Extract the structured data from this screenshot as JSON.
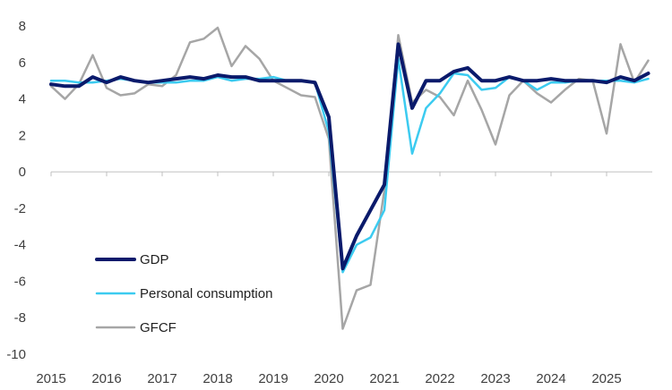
{
  "chart_data": {
    "type": "line",
    "title": "",
    "xlabel": "",
    "ylabel": "",
    "ylim": [
      -10,
      8
    ],
    "yticks": [
      -10,
      -8,
      -6,
      -4,
      -2,
      0,
      2,
      4,
      6,
      8
    ],
    "xlim": [
      2015,
      2025.875
    ],
    "xticks": [
      "2015",
      "2016",
      "2017",
      "2018",
      "2019",
      "2020",
      "2021",
      "2022",
      "2023",
      "2024",
      "2025"
    ],
    "grid": false,
    "legend_position": "bottom-left",
    "x": [
      2015,
      2015.25,
      2015.5,
      2015.75,
      2016,
      2016.25,
      2016.5,
      2016.75,
      2017,
      2017.25,
      2017.5,
      2017.75,
      2018,
      2018.25,
      2018.5,
      2018.75,
      2019,
      2019.25,
      2019.5,
      2019.75,
      2020,
      2020.25,
      2020.5,
      2020.75,
      2021,
      2021.25,
      2021.5,
      2021.75,
      2022,
      2022.25,
      2022.5,
      2022.75,
      2023,
      2023.25,
      2023.5,
      2023.75,
      2024,
      2024.25,
      2024.5,
      2024.75,
      2025,
      2025.25,
      2025.5,
      2025.75
    ],
    "series": [
      {
        "name": "GDP",
        "color": "#0a1a6b",
        "width": 4,
        "values": [
          4.8,
          4.7,
          4.7,
          5.2,
          4.9,
          5.2,
          5.0,
          4.9,
          5.0,
          5.1,
          5.2,
          5.1,
          5.3,
          5.2,
          5.2,
          5.0,
          5.0,
          5.0,
          5.0,
          4.9,
          3.0,
          -5.3,
          -3.5,
          -2.1,
          -0.7,
          7.0,
          3.5,
          5.0,
          5.0,
          5.5,
          5.7,
          5.0,
          5.0,
          5.2,
          5.0,
          5.0,
          5.1,
          5.0,
          5.0,
          5.0,
          4.9,
          5.2,
          5.0,
          5.4
        ]
      },
      {
        "name": "Personal consumption",
        "color": "#3ccbf0",
        "width": 2.5,
        "values": [
          5.0,
          5.0,
          4.9,
          4.9,
          5.0,
          5.1,
          5.0,
          4.9,
          4.9,
          4.9,
          5.0,
          5.0,
          5.2,
          5.0,
          5.1,
          5.1,
          5.2,
          5.0,
          5.0,
          4.9,
          2.2,
          -5.5,
          -4.0,
          -3.6,
          -2.1,
          6.2,
          1.0,
          3.5,
          4.3,
          5.4,
          5.3,
          4.5,
          4.6,
          5.2,
          5.0,
          4.5,
          4.9,
          4.9,
          5.0,
          5.0,
          5.0,
          5.0,
          4.9,
          5.1
        ]
      },
      {
        "name": "GFCF",
        "color": "#a6a6a6",
        "width": 2.5,
        "values": [
          4.7,
          4.0,
          4.8,
          6.4,
          4.6,
          4.2,
          4.3,
          4.8,
          4.7,
          5.3,
          7.1,
          7.3,
          7.9,
          5.8,
          6.9,
          6.2,
          5.0,
          4.6,
          4.2,
          4.1,
          1.8,
          -8.6,
          -6.5,
          -6.2,
          -1.0,
          7.5,
          3.8,
          4.5,
          4.1,
          3.1,
          5.0,
          3.4,
          1.5,
          4.2,
          5.0,
          4.3,
          3.8,
          4.5,
          5.1,
          5.0,
          2.1,
          7.0,
          4.9,
          6.1
        ]
      }
    ]
  }
}
